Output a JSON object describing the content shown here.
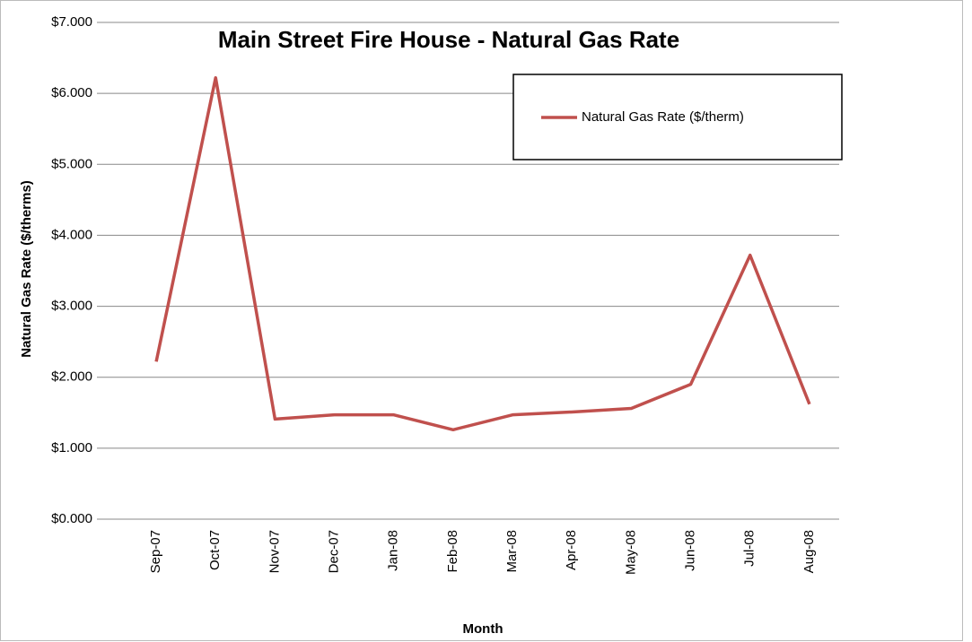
{
  "chart_data": {
    "type": "line",
    "title": "Main Street Fire House - Natural Gas Rate",
    "x_label": "Month",
    "y_label": "Natural Gas Rate ($/therms)",
    "categories": [
      "Sep-07",
      "Oct-07",
      "Nov-07",
      "Dec-07",
      "Jan-08",
      "Feb-08",
      "Mar-08",
      "Apr-08",
      "May-08",
      "Jun-08",
      "Jul-08",
      "Aug-08"
    ],
    "series": [
      {
        "name": "Natural Gas Rate ($/therm)",
        "color": "#c0504d",
        "values": [
          2.22,
          6.22,
          1.41,
          1.47,
          1.47,
          1.26,
          1.47,
          1.51,
          1.56,
          1.9,
          3.72,
          1.62
        ]
      }
    ],
    "ylim": [
      0,
      7
    ],
    "yticks": [
      {
        "value": 0,
        "label": "$0.000"
      },
      {
        "value": 1,
        "label": "$1.000"
      },
      {
        "value": 2,
        "label": "$2.000"
      },
      {
        "value": 3,
        "label": "$3.000"
      },
      {
        "value": 4,
        "label": "$4.000"
      },
      {
        "value": 5,
        "label": "$5.000"
      },
      {
        "value": 6,
        "label": "$6.000"
      },
      {
        "value": 7,
        "label": "$7.000"
      }
    ],
    "grid": true,
    "legend": "upper right"
  }
}
